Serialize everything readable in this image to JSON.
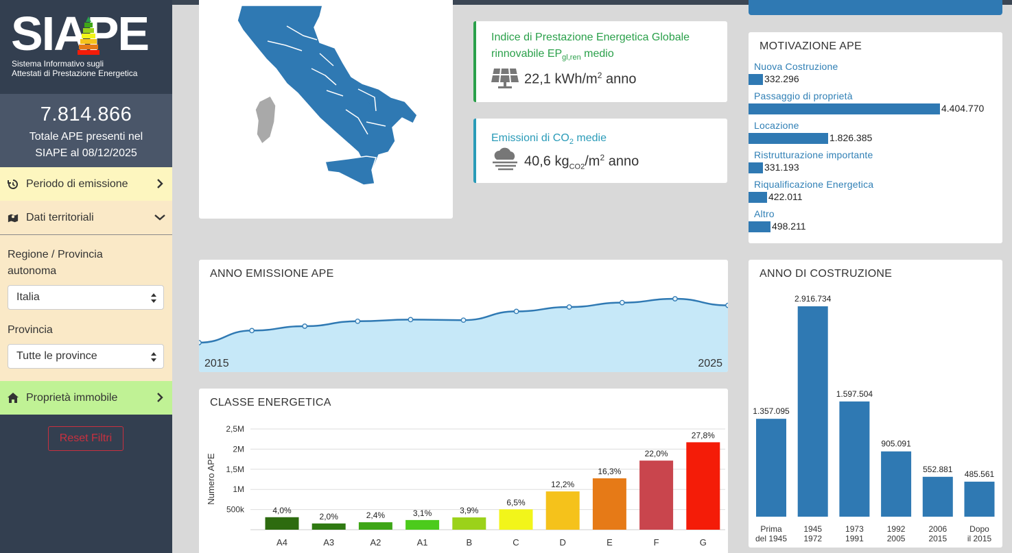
{
  "logo": {
    "text": "SIAPE",
    "subtitle_line1": "Sistema Informativo sugli",
    "subtitle_line2": "Attestati di Prestazione Energetica"
  },
  "summary": {
    "total": "7.814.866",
    "caption_line1": "Totale APE presenti nel",
    "caption_line2": "SIAPE al 08/12/2025"
  },
  "nav": {
    "periodo": "Periodo di emissione",
    "territoriali": "Dati territoriali",
    "proprieta": "Proprietà immobile"
  },
  "filters": {
    "regione_label_line1": "Regione / Provincia",
    "regione_label_line2": "autonoma",
    "regione_value": "Italia",
    "provincia_label": "Provincia",
    "provincia_value": "Tutte le province",
    "reset": "Reset Filtri"
  },
  "kpi_ep": {
    "title_line1": "Indice di Prestazione Energetica Globale",
    "title_pre": "rinnovabile EP",
    "title_sub": "gl,ren",
    "title_post": " medio",
    "value": "22,1 kWh/m",
    "value_sup": "2",
    "value_post": " anno",
    "color": "#2aa04a"
  },
  "kpi_co2": {
    "title_pre": "Emissioni di CO",
    "title_sub": "2",
    "title_post": " medie",
    "value": "40,6 kg",
    "value_sub": "CO2",
    "value_mid": "/m",
    "value_sup": "2",
    "value_post": " anno",
    "color": "#2a9bb8"
  },
  "motivazione": {
    "title": "MOTIVAZIONE APE",
    "items": [
      {
        "label": "Nuova Costruzione",
        "value": 332296,
        "display": "332.296"
      },
      {
        "label": "Passaggio di proprietà",
        "value": 4404770,
        "display": "4.404.770"
      },
      {
        "label": "Locazione",
        "value": 1826385,
        "display": "1.826.385"
      },
      {
        "label": "Ristrutturazione importante",
        "value": 331193,
        "display": "331.193"
      },
      {
        "label": "Riqualificazione Energetica",
        "value": 422011,
        "display": "422.011"
      },
      {
        "label": "Altro",
        "value": 498211,
        "display": "498.211"
      }
    ]
  },
  "anno_emissione": {
    "title": "ANNO EMISSIONE APE",
    "start_label": "2015",
    "end_label": "2025",
    "chart_data": {
      "type": "area",
      "x": [
        2015,
        2016,
        2017,
        2018,
        2019,
        2020,
        2021,
        2022,
        2023,
        2024,
        2025
      ],
      "values": [
        0.2,
        0.42,
        0.5,
        0.59,
        0.62,
        0.61,
        0.77,
        0.85,
        0.93,
        1.0,
        0.88
      ]
    }
  },
  "classe": {
    "title": "CLASSE ENERGETICA",
    "ylabel": "Numero APE",
    "yticks": [
      "500k",
      "1M",
      "1,5M",
      "2M",
      "2,5M"
    ],
    "chart_data": {
      "type": "bar",
      "categories": [
        "A4",
        "A3",
        "A2",
        "A1",
        "B",
        "C",
        "D",
        "E",
        "F",
        "G"
      ],
      "values": [
        310000,
        155000,
        185000,
        240000,
        305000,
        505000,
        950000,
        1275000,
        1715000,
        2170000
      ],
      "labels": [
        "4,0%",
        "2,0%",
        "2,4%",
        "3,1%",
        "3,9%",
        "6,5%",
        "12,2%",
        "16,3%",
        "22,0%",
        "27,8%"
      ],
      "colors": [
        "#2d6b0f",
        "#2f7a12",
        "#3ea617",
        "#4ccb1c",
        "#9bd21a",
        "#f2f51a",
        "#f5c21b",
        "#e67a17",
        "#c9454d",
        "#f41c08"
      ],
      "ylim": [
        0,
        2500000
      ]
    }
  },
  "costruzione": {
    "title": "ANNO DI COSTRUZIONE",
    "chart_data": {
      "type": "bar",
      "categories": [
        [
          "Prima",
          "del 1945"
        ],
        [
          "1945",
          "1972"
        ],
        [
          "1973",
          "1991"
        ],
        [
          "1992",
          "2005"
        ],
        [
          "2006",
          "2015"
        ],
        [
          "Dopo",
          "il 2015"
        ]
      ],
      "values": [
        1357095,
        2916734,
        1597504,
        905091,
        552881,
        485561
      ],
      "labels": [
        "1.357.095",
        "2.916.734",
        "1.597.504",
        "905.091",
        "552.881",
        "485.561"
      ],
      "color": "#2f79b3"
    }
  }
}
